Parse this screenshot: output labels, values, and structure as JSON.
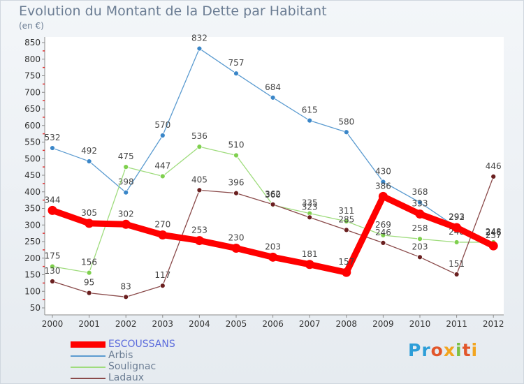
{
  "title": "Evolution du Montant de la Dette par Habitant",
  "subtitle": "(en €)",
  "logo": {
    "p1": "Pr",
    "p2": "o",
    "p3": "x",
    "p4": "i",
    "p5": "t",
    "p6": "i"
  },
  "chart_data": {
    "type": "line",
    "title": "Evolution du Montant de la Dette par Habitant",
    "ylabel": "(en €)",
    "xlabel": "",
    "ylim": [
      50,
      850
    ],
    "yticks": [
      50,
      100,
      150,
      200,
      250,
      300,
      350,
      400,
      450,
      500,
      550,
      600,
      650,
      700,
      750,
      800,
      850
    ],
    "categories": [
      "2000",
      "2001",
      "2002",
      "2003",
      "2004",
      "2005",
      "2006",
      "2007",
      "2008",
      "2009",
      "2010",
      "2011",
      "2012"
    ],
    "series": [
      {
        "name": "Arbis",
        "color": "#5b9bd0",
        "point_color": "#3a86c8",
        "values": [
          532,
          492,
          398,
          570,
          832,
          757,
          684,
          615,
          580,
          430,
          368,
          293,
          246
        ]
      },
      {
        "name": "Soulignac",
        "color": "#9fdc7d",
        "point_color": "#7fd04e",
        "values": [
          175,
          156,
          475,
          447,
          536,
          510,
          360,
          335,
          311,
          269,
          258,
          248,
          248
        ]
      },
      {
        "name": "Ladaux",
        "color": "#8a4a4a",
        "point_color": "#6a1f1f",
        "values": [
          130,
          95,
          83,
          117,
          405,
          396,
          362,
          323,
          285,
          246,
          203,
          151,
          446
        ]
      },
      {
        "name": "ESCOUSSANS",
        "color": "#ff0000",
        "point_color": "#ff0000",
        "values": [
          344,
          305,
          302,
          270,
          253,
          230,
          203,
          181,
          157,
          386,
          333,
          292,
          237
        ]
      }
    ],
    "legend_position": "bottom-left",
    "grid": false
  }
}
